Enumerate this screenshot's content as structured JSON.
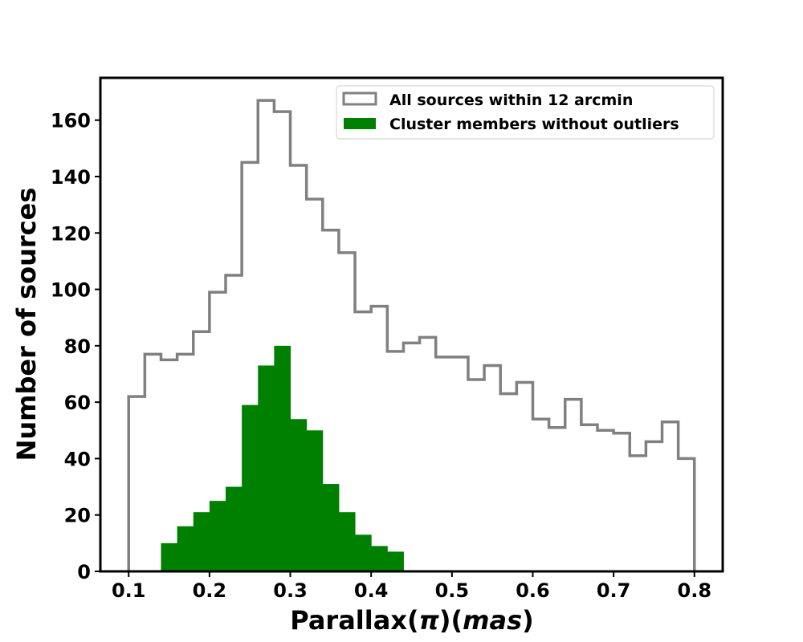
{
  "chart_data": {
    "type": "bar",
    "xlabel": "Parallax(π)(mas)",
    "xlabel_parts": {
      "prefix": "Parallax(",
      "symbol": "π",
      "middle": ")(",
      "unit": "mas",
      "suffix": ")"
    },
    "ylabel": "Number of sources",
    "xlim": [
      0.065,
      0.835
    ],
    "ylim": [
      0,
      175
    ],
    "xticks": [
      0.1,
      0.2,
      0.3,
      0.4,
      0.5,
      0.6,
      0.7,
      0.8
    ],
    "xtick_labels": [
      "0.1",
      "0.2",
      "0.3",
      "0.4",
      "0.5",
      "0.6",
      "0.7",
      "0.8"
    ],
    "yticks": [
      0,
      20,
      40,
      60,
      80,
      100,
      120,
      140,
      160
    ],
    "ytick_labels": [
      "0",
      "20",
      "40",
      "60",
      "80",
      "100",
      "120",
      "140",
      "160"
    ],
    "legend_position": "top-right",
    "grid": false,
    "series": [
      {
        "name": "All sources within 12 arcmin",
        "style": "step-outline",
        "color": "#808080",
        "bin_edges": [
          0.1,
          0.12,
          0.14,
          0.16,
          0.18,
          0.2,
          0.22,
          0.24,
          0.26,
          0.28,
          0.3,
          0.32,
          0.34,
          0.36,
          0.38,
          0.4,
          0.42,
          0.44,
          0.46,
          0.48,
          0.5,
          0.52,
          0.54,
          0.56,
          0.58,
          0.6,
          0.62,
          0.64,
          0.66,
          0.68,
          0.7,
          0.72,
          0.74,
          0.76,
          0.78,
          0.8
        ],
        "values": [
          62,
          77,
          75,
          77,
          85,
          99,
          105,
          145,
          167,
          163,
          144,
          132,
          121,
          113,
          92,
          94,
          78,
          81,
          83,
          76,
          76,
          68,
          73,
          63,
          67,
          54,
          51,
          61,
          52,
          50,
          49,
          41,
          46,
          53,
          40
        ]
      },
      {
        "name": "Cluster members without outliers",
        "style": "filled",
        "color": "#008000",
        "bin_edges": [
          0.14,
          0.16,
          0.18,
          0.2,
          0.22,
          0.24,
          0.26,
          0.28,
          0.3,
          0.32,
          0.34,
          0.36,
          0.38,
          0.4,
          0.42,
          0.44
        ],
        "values": [
          10,
          16,
          21,
          25,
          30,
          59,
          73,
          80,
          54,
          50,
          31,
          21,
          13,
          9,
          7
        ]
      }
    ]
  }
}
